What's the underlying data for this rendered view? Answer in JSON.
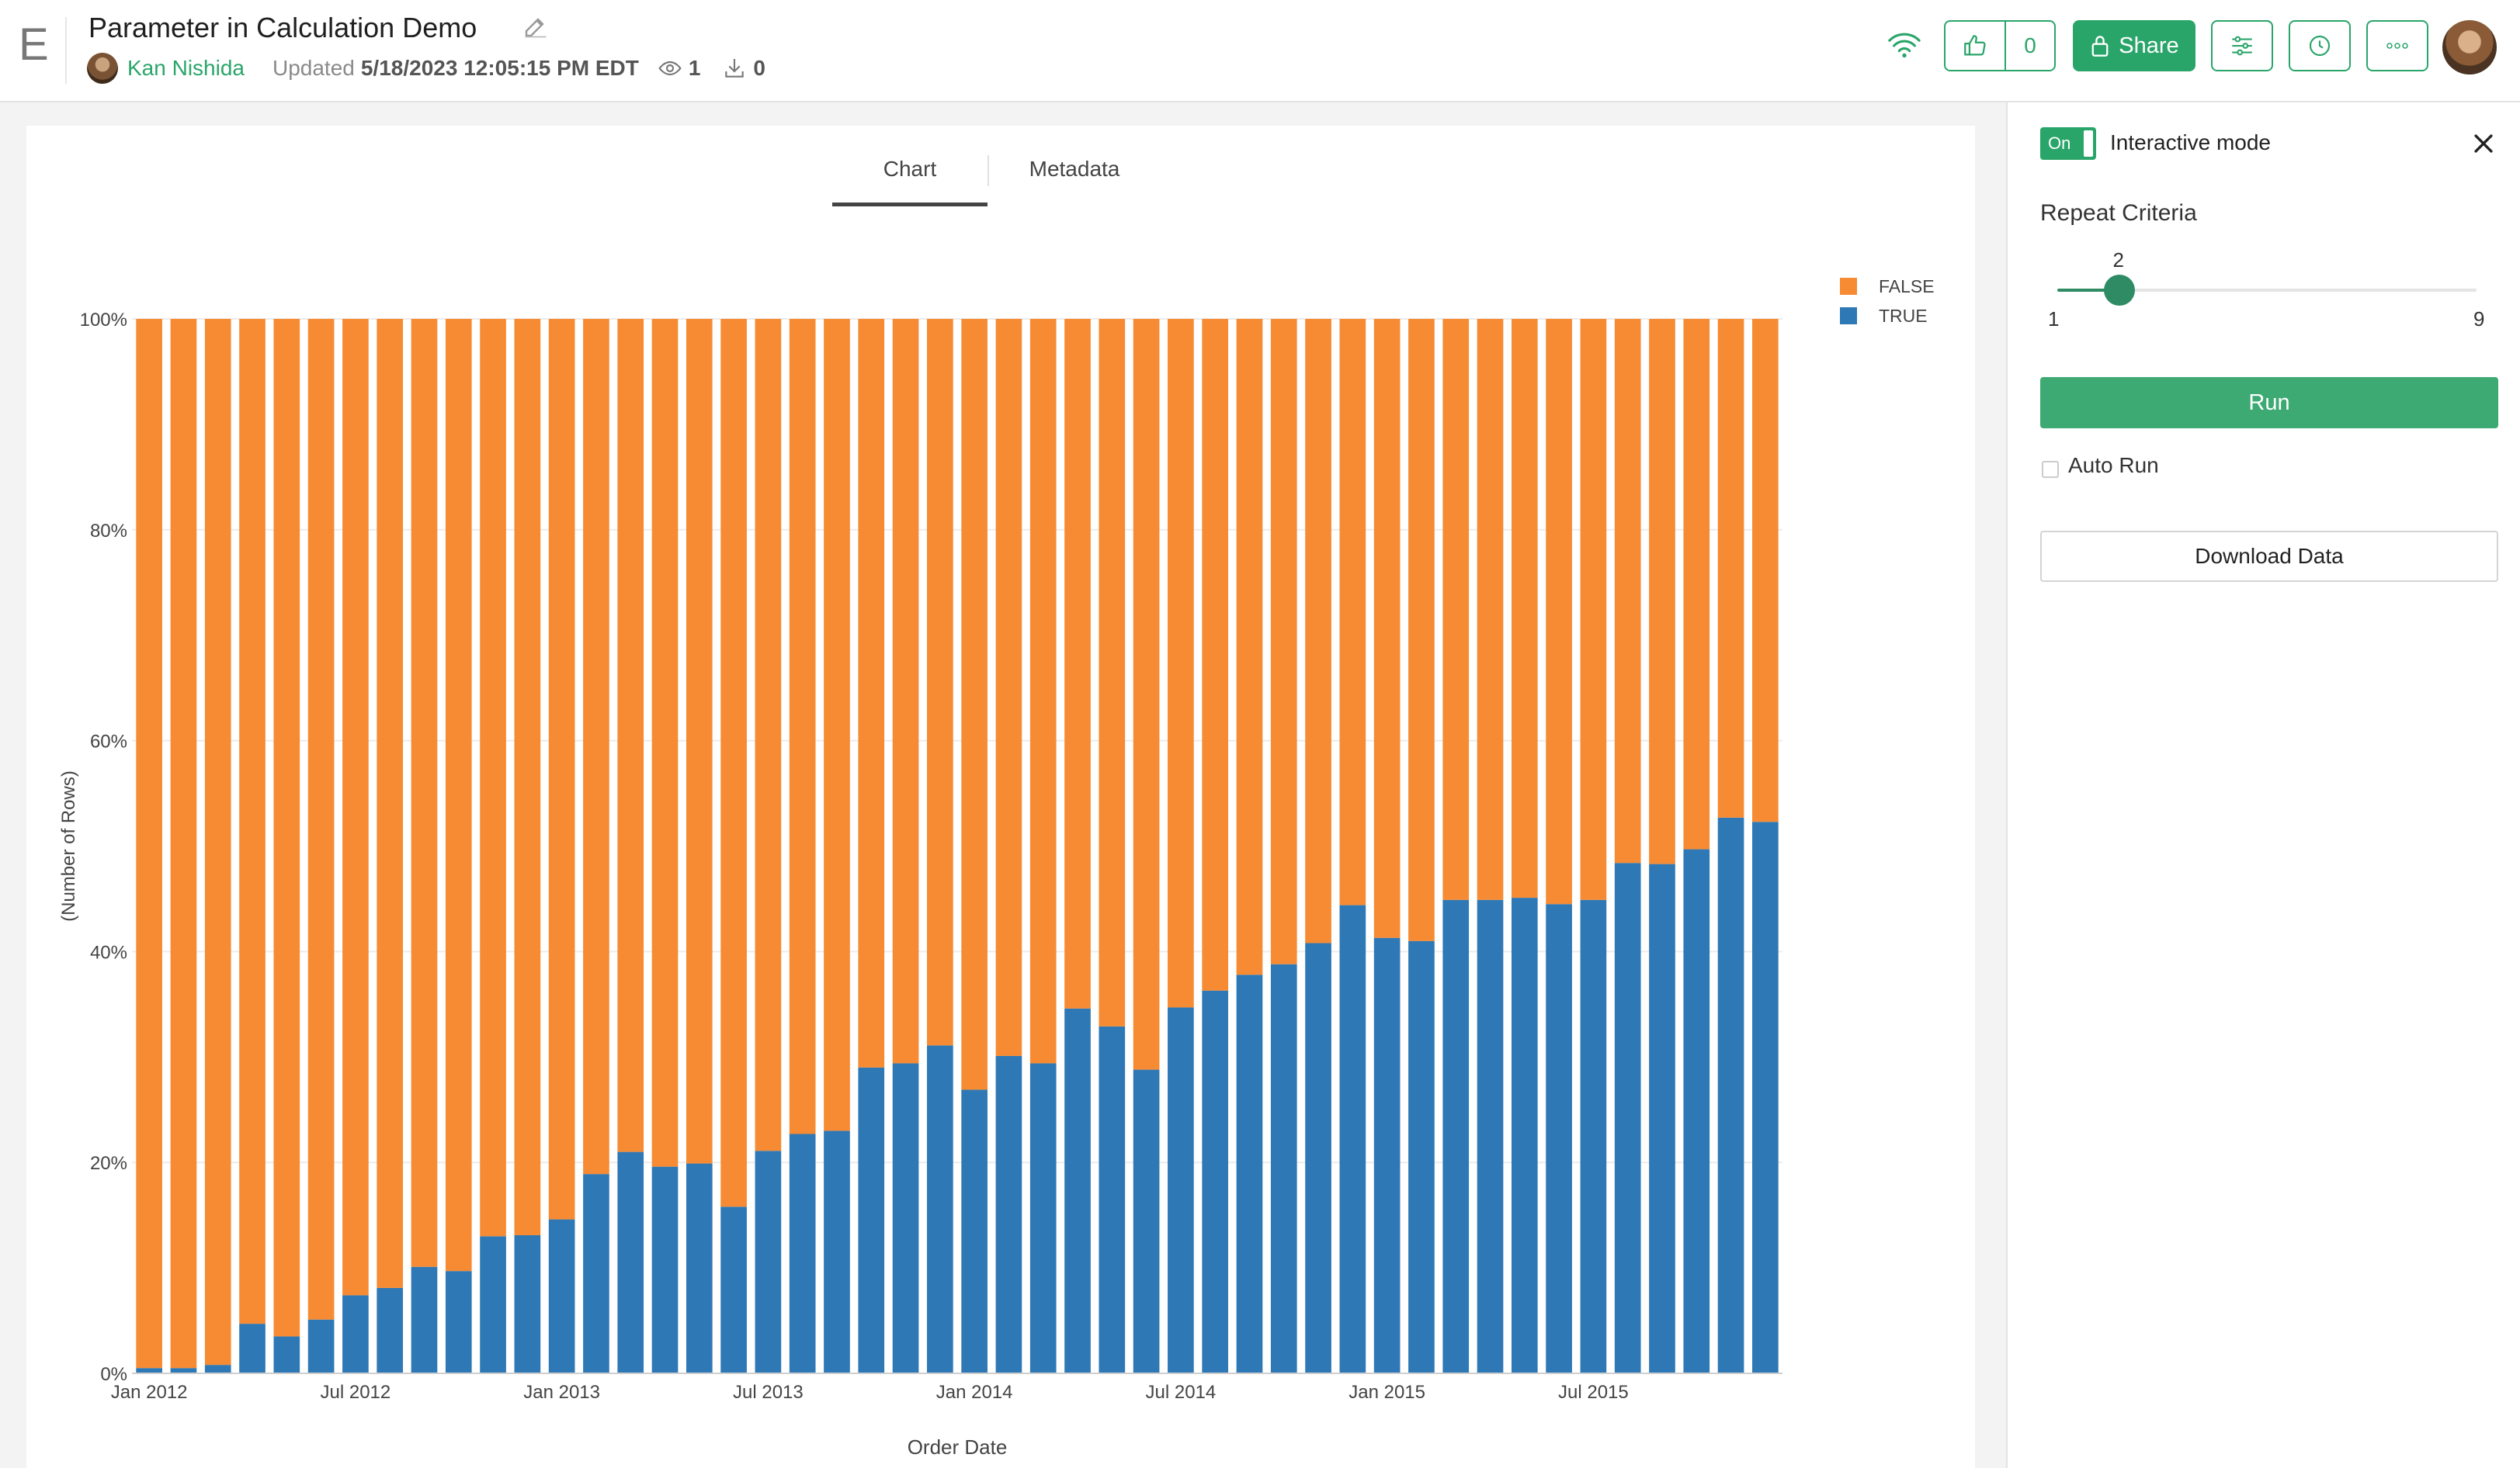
{
  "header": {
    "logo": "E",
    "title": "Parameter in Calculation Demo",
    "author": "Kan Nishida",
    "updated_label": "Updated",
    "updated_value": "5/18/2023 12:05:15 PM EDT",
    "views": "1",
    "downloads": "0",
    "likes": "0",
    "share_label": "Share",
    "icons": [
      "edit-icon",
      "eye-icon",
      "download-icon",
      "wifi-icon",
      "thumbs-up-icon",
      "lock-icon",
      "sliders-icon",
      "clock-icon",
      "more-icon"
    ]
  },
  "tabs": [
    {
      "label": "Chart",
      "active": true
    },
    {
      "label": "Metadata",
      "active": false
    }
  ],
  "side_panel": {
    "toggle_label": "On",
    "interactive_label": "Interactive mode",
    "parameter_label": "Repeat Criteria",
    "slider": {
      "value": 2,
      "min": 1,
      "max": 9,
      "min_label": "1",
      "max_label": "9"
    },
    "run_label": "Run",
    "auto_run_label": "Auto Run",
    "auto_run_checked": false,
    "download_label": "Download Data"
  },
  "colors": {
    "accent": "#2aa56a",
    "true_series": "#2e78b5",
    "false_series": "#f68b33"
  },
  "chart_data": {
    "type": "bar",
    "stacked": "percent",
    "xlabel": "Order Date",
    "ylabel": "(Number of Rows)",
    "y_ticks": [
      "0%",
      "20%",
      "40%",
      "60%",
      "80%",
      "100%"
    ],
    "ylim": [
      0,
      100
    ],
    "x_ticks": [
      "Jan 2012",
      "Jul 2012",
      "Jan 2013",
      "Jul 2013",
      "Jan 2014",
      "Jul 2014",
      "Jan 2015",
      "Jul 2015"
    ],
    "x_tick_index": [
      0,
      6,
      12,
      18,
      24,
      30,
      36,
      42
    ],
    "categories": [
      "2012-01",
      "2012-02",
      "2012-03",
      "2012-04",
      "2012-05",
      "2012-06",
      "2012-07",
      "2012-08",
      "2012-09",
      "2012-10",
      "2012-11",
      "2012-12",
      "2013-01",
      "2013-02",
      "2013-03",
      "2013-04",
      "2013-05",
      "2013-06",
      "2013-07",
      "2013-08",
      "2013-09",
      "2013-10",
      "2013-11",
      "2013-12",
      "2014-01",
      "2014-02",
      "2014-03",
      "2014-04",
      "2014-05",
      "2014-06",
      "2014-07",
      "2014-08",
      "2014-09",
      "2014-10",
      "2014-11",
      "2014-12",
      "2015-01",
      "2015-02",
      "2015-03",
      "2015-04",
      "2015-05",
      "2015-06",
      "2015-07",
      "2015-08",
      "2015-09",
      "2015-10",
      "2015-11",
      "2015-12"
    ],
    "legend": [
      "FALSE",
      "TRUE"
    ],
    "legend_position": "top-right",
    "series": [
      {
        "name": "TRUE",
        "values": [
          0.5,
          0.5,
          0.8,
          4.7,
          3.5,
          5.1,
          7.4,
          8.1,
          10.1,
          9.7,
          13.0,
          13.1,
          14.6,
          18.9,
          21.0,
          19.6,
          19.9,
          15.8,
          21.1,
          22.7,
          23.0,
          29.0,
          29.4,
          31.1,
          26.9,
          30.1,
          29.4,
          34.6,
          32.9,
          28.8,
          34.7,
          36.3,
          37.8,
          38.8,
          40.8,
          44.4,
          41.3,
          41.0,
          44.9,
          44.9,
          45.1,
          44.5,
          44.9,
          48.4,
          48.3,
          49.7,
          52.7,
          52.3
        ]
      },
      {
        "name": "FALSE",
        "values": [
          99.5,
          99.5,
          99.2,
          95.3,
          96.5,
          94.9,
          92.6,
          91.9,
          89.9,
          90.3,
          87.0,
          86.9,
          85.4,
          81.1,
          79.0,
          80.4,
          80.1,
          84.2,
          78.9,
          77.3,
          77.0,
          71.0,
          70.6,
          68.9,
          73.1,
          69.9,
          70.6,
          65.4,
          67.1,
          71.2,
          65.3,
          63.7,
          62.2,
          61.2,
          59.2,
          55.6,
          58.7,
          59.0,
          55.1,
          55.1,
          54.9,
          55.5,
          55.1,
          51.6,
          51.7,
          50.3,
          47.3,
          47.7
        ]
      }
    ]
  }
}
